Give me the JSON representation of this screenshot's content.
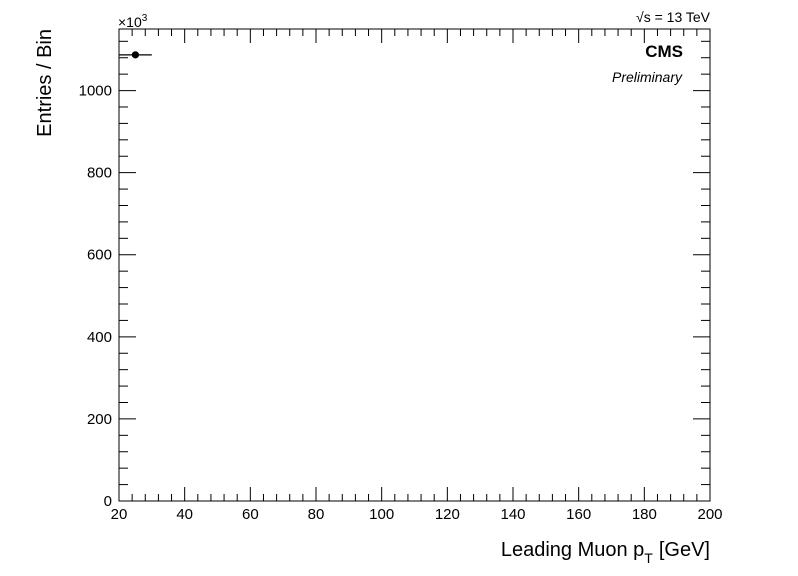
{
  "chart_data": {
    "type": "scatter",
    "title": "",
    "xlabel": "Leading Muon p",
    "xlabel_sub": "T",
    "xlabel_unit": "[GeV]",
    "ylabel": "Entries / Bin",
    "y_multiplier": "×10",
    "y_multiplier_exp": "3",
    "xlim": [
      20,
      200
    ],
    "ylim": [
      0,
      1150
    ],
    "x_ticks": [
      "20",
      "40",
      "60",
      "80",
      "100",
      "120",
      "140",
      "160",
      "180",
      "200"
    ],
    "y_ticks": [
      "0",
      "200",
      "400",
      "600",
      "800",
      "1000"
    ],
    "points": [
      {
        "x": 25,
        "y": 1087,
        "xerr": [
          20,
          30
        ]
      }
    ],
    "grid": false,
    "legend": "none"
  },
  "annotations": {
    "experiment": "CMS",
    "status": "Preliminary",
    "energy_symbol": "√s",
    "energy_value": " = 13 TeV"
  }
}
